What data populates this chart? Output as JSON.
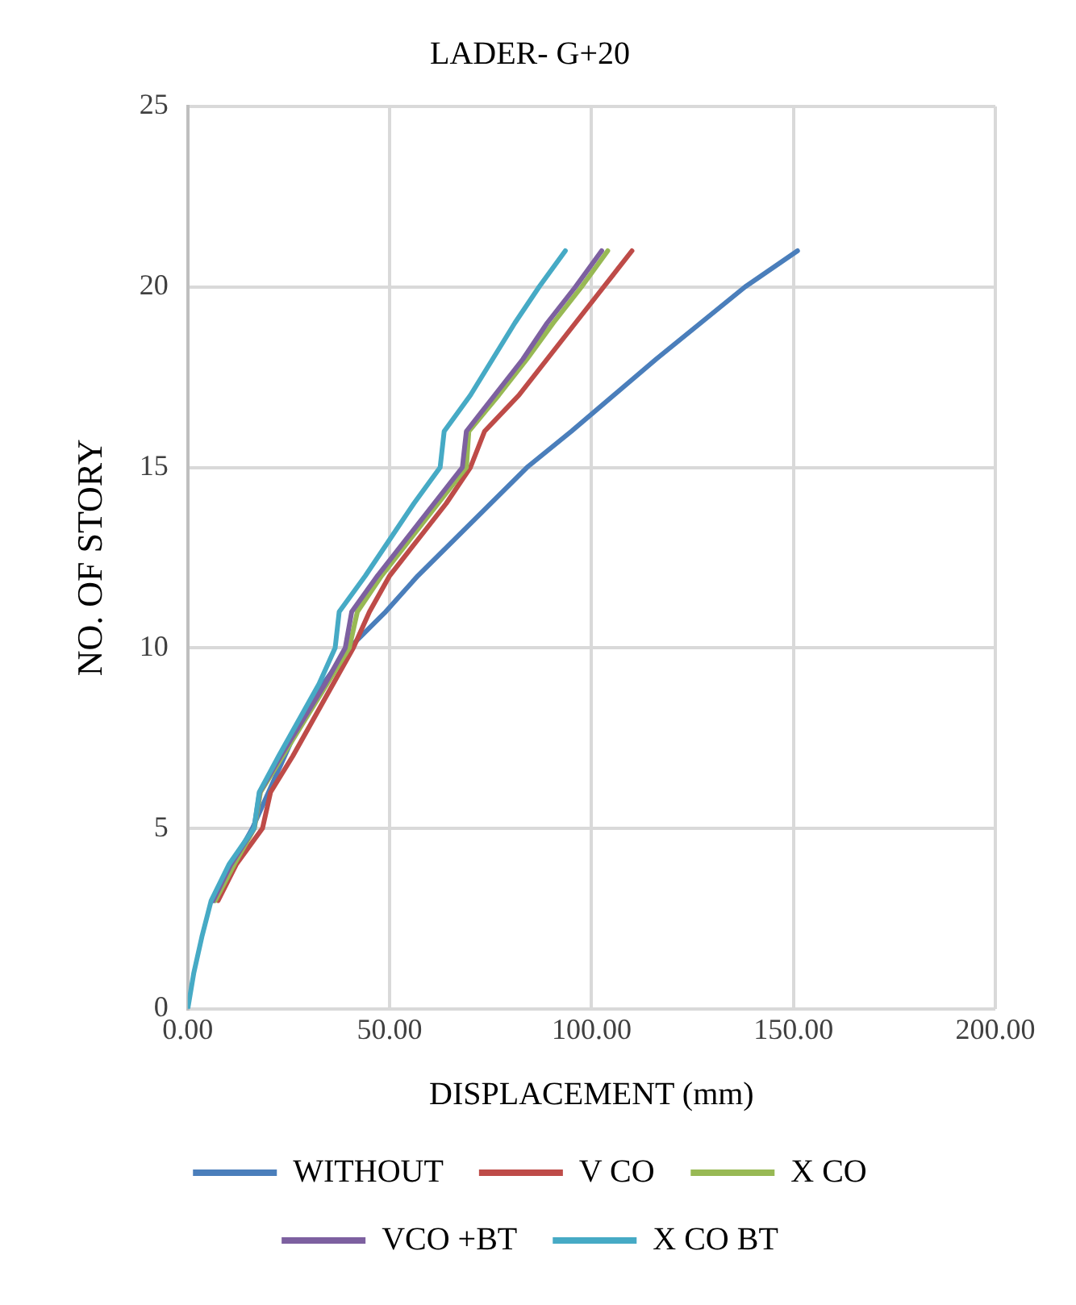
{
  "chart_data": {
    "type": "line",
    "title": "LADER- G+20",
    "xlabel": "DISPLACEMENT (mm)",
    "ylabel": "NO. OF STORY",
    "xlim": [
      0,
      200
    ],
    "xticks": [
      {
        "value": 0,
        "label": "0.00"
      },
      {
        "value": 50,
        "label": "50.00"
      },
      {
        "value": 100,
        "label": "100.00"
      },
      {
        "value": 150,
        "label": "150.00"
      },
      {
        "value": 200,
        "label": "200.00"
      }
    ],
    "ylim": [
      0,
      25
    ],
    "yticks": [
      0,
      5,
      10,
      15,
      20,
      25
    ],
    "grid": true,
    "legend": "bottom",
    "marker": "none",
    "line_style": "solid",
    "series": [
      {
        "name": "WITHOUT",
        "color": "#4a7ebb",
        "x": [
          6.5,
          11,
          16,
          20,
          24,
          28,
          33.5,
          40,
          49,
          57,
          66,
          75,
          84,
          95,
          105.5,
          116,
          127,
          138,
          151
        ],
        "values": [
          3,
          4,
          5,
          6,
          7,
          8,
          9,
          10,
          11,
          12,
          13,
          14,
          15,
          16,
          17,
          18,
          19,
          20,
          21
        ]
      },
      {
        "name": "V CO",
        "color": "#be4b48",
        "x": [
          7.5,
          12,
          18.5,
          20.5,
          26,
          31,
          36,
          41,
          45,
          50,
          57,
          64,
          70,
          73.5,
          82,
          89,
          96,
          103,
          110
        ],
        "values": [
          3,
          4,
          5,
          6,
          7,
          8,
          9,
          10,
          11,
          12,
          13,
          14,
          15,
          16,
          17,
          18,
          19,
          20,
          21
        ]
      },
      {
        "name": "X CO",
        "color": "#98b954",
        "x": [
          6.8,
          11.5,
          16.5,
          18,
          23.5,
          29,
          34.5,
          40,
          42,
          48,
          55,
          62,
          69,
          69.6,
          77,
          84,
          90.5,
          97.5,
          104
        ],
        "values": [
          3,
          4,
          5,
          6,
          7,
          8,
          9,
          10,
          11,
          12,
          13,
          14,
          15,
          16,
          17,
          18,
          19,
          20,
          21
        ]
      },
      {
        "name": "VCO +BT",
        "color": "#7d60a0",
        "x": [
          6.3,
          10.7,
          16.4,
          17.8,
          23,
          28.5,
          34,
          39,
          40.6,
          47,
          54,
          61,
          68,
          69,
          76,
          83,
          89,
          96,
          102.5
        ],
        "values": [
          3,
          4,
          5,
          6,
          7,
          8,
          9,
          10,
          11,
          12,
          13,
          14,
          15,
          16,
          17,
          18,
          19,
          20,
          21
        ]
      },
      {
        "name": "X CO BT",
        "color": "#46aac5",
        "x": [
          0,
          1.5,
          3.5,
          5.8,
          10.2,
          16.4,
          17.7,
          22.5,
          27.5,
          32.5,
          36.5,
          37.5,
          44,
          50,
          56,
          62.5,
          63.5,
          70,
          75.5,
          81,
          87,
          93.5
        ],
        "values": [
          0,
          1,
          2,
          3,
          4,
          5,
          6,
          7,
          8,
          9,
          10,
          11,
          12,
          13,
          14,
          15,
          16,
          17,
          18,
          19,
          20,
          21
        ]
      }
    ]
  }
}
